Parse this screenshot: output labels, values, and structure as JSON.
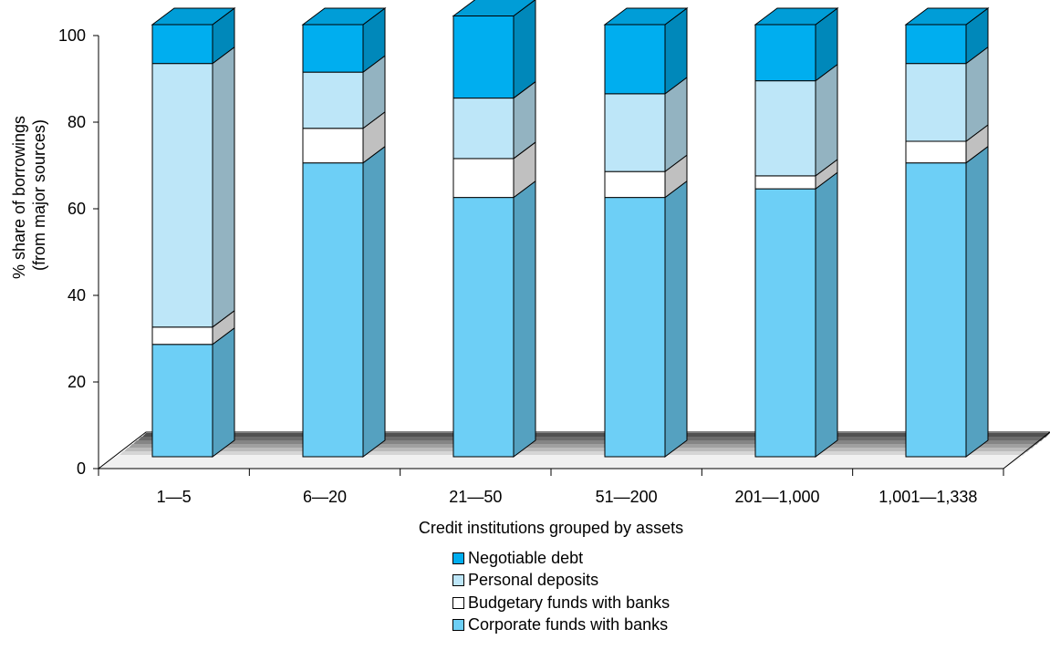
{
  "chart_data": {
    "type": "bar",
    "stacked": true,
    "three_d": true,
    "xlabel": "Credit institutions grouped by assets",
    "ylabel_lines": [
      "% share of borrowings",
      "(from major sources)"
    ],
    "ylim": [
      0,
      100
    ],
    "yticks": [
      0,
      20,
      40,
      60,
      80,
      100
    ],
    "categories": [
      "1—5",
      "6—20",
      "21—50",
      "51—200",
      "201—1,000",
      "1,001—1,338"
    ],
    "series": [
      {
        "name": "Corporate funds with banks",
        "color": "#6DCFF6",
        "values": [
          26,
          68,
          60,
          60,
          62,
          68
        ]
      },
      {
        "name": "Budgetary funds with banks",
        "color": "#FFFFFF",
        "values": [
          4,
          8,
          9,
          6,
          3,
          5
        ]
      },
      {
        "name": "Personal deposits",
        "color": "#BDE6F8",
        "values": [
          61,
          13,
          14,
          18,
          22,
          18
        ]
      },
      {
        "name": "Negotiable debt",
        "color": "#00AEEF",
        "values": [
          9,
          11,
          19,
          16,
          13,
          9
        ]
      }
    ],
    "legend_order": [
      "Negotiable debt",
      "Personal deposits",
      "Budgetary funds with banks",
      "Corporate funds with banks"
    ],
    "legend_position": "bottom-center",
    "grid": false
  }
}
